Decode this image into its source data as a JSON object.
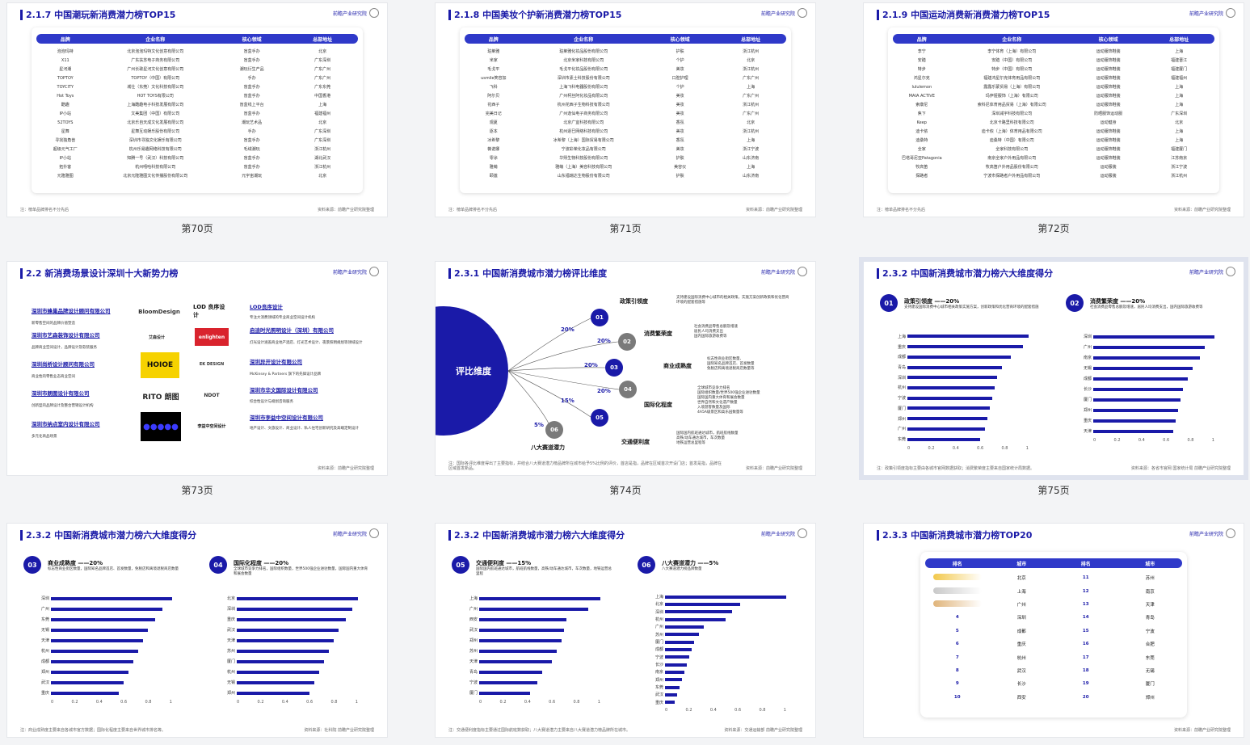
{
  "pages": {
    "p70": {
      "caption": "第70页",
      "title": "2.1.7 中国潮玩新消费潜力榜TOP15",
      "headers": [
        "品牌",
        "企业名称",
        "核心领域",
        "总部地址"
      ],
      "rows": [
        [
          "泡泡玛特",
          "北京泡泡玛特文化创意有限公司",
          "盲盒手办",
          "北京"
        ],
        [
          "X11",
          "广东扶苏电子商务有限公司",
          "盲盒手办",
          "广东深圳"
        ],
        [
          "星河潮",
          "广州长歌星河文化创意有限公司",
          "潮玩衍生产品",
          "广东广州"
        ],
        [
          "TOPTOY",
          "TOPTOY（中国）有限公司",
          "手办",
          "广东广州"
        ],
        [
          "TOYCITY",
          "城仕（东莞）文化科技有限公司",
          "盲盒手办",
          "广东东莞"
        ],
        [
          "Hot Toys",
          "HOT TOYS有限公司",
          "盲盒手办",
          "中国香港"
        ],
        [
          "酷趣",
          "上海酷趣电子科技发展有限公司",
          "盲盒线上平台",
          "上海"
        ],
        [
          "IP小站",
          "文美集团（中国）有限公司",
          "盲盒手办",
          "福建福州"
        ],
        [
          "52TOYS",
          "北京乐自天成文化发展有限公司",
          "潮玩艺术品",
          "北京"
        ],
        [
          "星舞",
          "星舞互动娱乐股份有限公司",
          "手办",
          "广东深圳"
        ],
        [
          "寻找独角兽",
          "深圳市寻独文化娱乐有限公司",
          "盲盒手办",
          "广东深圳"
        ],
        [
          "超级元气工厂",
          "杭州乐易趣网络科技有限公司",
          "毛绒潮玩",
          "浙江杭州"
        ],
        [
          "IP小站",
          "知腾一号（武汉）科技有限公司",
          "盲盒手办",
          "湖北武汉"
        ],
        [
          "拓扑客",
          "杭州嘻哈科技有限公司",
          "盲盒手办",
          "浙江杭州"
        ],
        [
          "元隆雅图",
          "北京元隆雅图文化传播股份有限公司",
          "元宇宙潮玩",
          "北京"
        ]
      ],
      "note": "注：榜单品牌排名不分先后",
      "source": "资料来源：前瞻产业研究院整理"
    },
    "p71": {
      "caption": "第71页",
      "title": "2.1.8 中国美妆个护新消费潜力榜TOP15",
      "headers": [
        "品牌",
        "企业名称",
        "核心领域",
        "总部地址"
      ],
      "rows": [
        [
          "珀莱雅",
          "珀莱雅化妆品股份有限公司",
          "护肤",
          "浙江杭州"
        ],
        [
          "米家",
          "北京米家科技有限公司",
          "个护",
          "北京"
        ],
        [
          "毛戈平",
          "毛戈平化妆品股份有限公司",
          "美妆",
          "浙江杭州"
        ],
        [
          "usmile笑容加",
          "深圳市素士科技股份有限公司",
          "口腔护理",
          "广东广州"
        ],
        [
          "飞科",
          "上海飞科电器股份有限公司",
          "个护",
          "上海"
        ],
        [
          "阿尔贝",
          "广州柯丝阿化妆品有限公司",
          "美妆",
          "广东广州"
        ],
        [
          "花西子",
          "杭州花西子生物科技有限公司",
          "美妆",
          "浙江杭州"
        ],
        [
          "完美日记",
          "广州逸仙电子商务有限公司",
          "美妆",
          "广东广州"
        ],
        [
          "观夏",
          "北京广宜科技有限公司",
          "香氛",
          "北京"
        ],
        [
          "逐本",
          "杭州逐巳网络科技有限公司",
          "美妆",
          "浙江杭州"
        ],
        [
          "冰希黎",
          "冰希黎（上海）国际贸易有限公司",
          "香氛",
          "上海"
        ],
        [
          "薇诺娜",
          "宁波彩荣化妆品有限公司",
          "美妆",
          "浙江宁波"
        ],
        [
          "零涂",
          "华熙生物科技股份有限公司",
          "护肤",
          "山东济南"
        ],
        [
          "雅萌",
          "雅萌（上海）美容科技有限公司",
          "美容仪",
          "上海"
        ],
        [
          "颐莲",
          "山东福瑞达生物股份有限公司",
          "护肤",
          "山东济南"
        ]
      ],
      "note": "注：榜单品牌排名不分先后",
      "source": "资料来源：前瞻产业研究院整理"
    },
    "p72": {
      "caption": "第72页",
      "title": "2.1.9 中国运动消费新消费潜力榜TOP15",
      "headers": [
        "品牌",
        "企业名称",
        "核心领域",
        "总部地址"
      ],
      "rows": [
        [
          "李宁",
          "李宁体育（上海）有限公司",
          "运动服饰鞋装",
          "上海"
        ],
        [
          "安踏",
          "安踏（中国）有限公司",
          "运动服饰鞋装",
          "福建晋江"
        ],
        [
          "特步",
          "特步（中国）有限公司",
          "运动服饰鞋装",
          "福建厦门"
        ],
        [
          "鸿星尔克",
          "福建鸿星尔克体育用品有限公司",
          "运动服饰鞋装",
          "福建福州"
        ],
        [
          "lululemon",
          "露露乐蒙贸易（上海）有限公司",
          "运动服饰鞋装",
          "上海"
        ],
        [
          "MAIA ACTIVE",
          "玛伊娅服饰（上海）有限公司",
          "运动服饰鞋装",
          "上海"
        ],
        [
          "索康尼",
          "索科尼体育用品贸易（上海）有限公司",
          "运动服饰鞋装",
          "上海"
        ],
        [
          "焦下",
          "深圳减宇科技有限公司",
          "防晒服饰运动服",
          "广东深圳"
        ],
        [
          "Keep",
          "北京卡路里科技有限公司",
          "运动健身",
          "北京"
        ],
        [
          "迪卡侬",
          "迪卡侬（上海）体育用品有限公司",
          "运动服饰鞋装",
          "上海"
        ],
        [
          "迪桑特",
          "迪桑特（中国）有限公司",
          "运动服饰鞋装",
          "上海"
        ],
        [
          "全家",
          "全家科技有限公司",
          "运动服饰鞋装",
          "福建厦门"
        ],
        [
          "巴塔哥尼亚Patagonia",
          "南京全家户外用品有限公司",
          "运动服饰鞋装",
          "江苏南京"
        ],
        [
          "牧高笛",
          "牧高笛户外用品股份有限公司",
          "运动服装",
          "浙江宁波"
        ],
        [
          "探路者",
          "宁波市探路者户外用品有限公司",
          "运动服装",
          "浙江杭州"
        ]
      ],
      "note": "注：榜单品牌排名不分先后",
      "source": "资料来源：前瞻产业研究院整理"
    },
    "p73": {
      "caption": "第73页",
      "title": "2.2 新消费场景设计深圳十大新势力榜",
      "companies_left": [
        {
          "name": "深圳市蜂巢品牌设计顾问有限公司",
          "desc": "新零售空间的品牌价值塑造"
        },
        {
          "name": "深圳市艺森装饰设计有限公司",
          "desc": "品牌商业空间设计，品牌设计及软装服务"
        },
        {
          "name": "深圳尚桥设计顾问有限公司",
          "desc": "商业性的零售业态商业空间"
        },
        {
          "name": "深圳市朗图设计有限公司",
          "desc": "创新型的品牌设计及整合营销设计机构"
        },
        {
          "name": "深圳市纳点室内设计有限公司",
          "desc": "多元化商品场景"
        }
      ],
      "companies_right": [
        {
          "name": "LOD良序设计",
          "desc": "专注大消费领域的专业商业空间设计机构"
        },
        {
          "name": "启迪时光照明设计（深圳）有限公司",
          "desc": "灯光设计涵盖商业地产酒店、灯光艺术设计、夜景照明规划等领域设计"
        },
        {
          "name": "深圳异开设计有限公司",
          "desc": "McKinsey & Partners 旗下的先锋设计品牌"
        },
        {
          "name": "深圳市华文国际设计有限公司",
          "desc": "综合性设计与规划咨询服务"
        },
        {
          "name": "深圳市李益中空间设计有限公司",
          "desc": "地产设计、文旅设计、商业设计、私人住宅创新研究及高端定制设计"
        }
      ],
      "logos": [
        "BloomDesign",
        "LOD 良序设计",
        "艾森设计",
        "enlighten",
        "HOIOE",
        "EK DESIGN",
        "RITO 朗图",
        "NDOT",
        "李益中空间设计"
      ],
      "source": "资料来源：前瞻产业研究院整理"
    },
    "p74": {
      "caption": "第74页",
      "title": "2.3.1 中国新消费城市潜力榜评比维度",
      "center": "评比维度",
      "dims": [
        {
          "num": "01",
          "pct": "20%",
          "name": "政策引领度",
          "text": "支持建设国际消费中心城市的相关政策，实施方案创新政策和优化营商环境的配套措施等"
        },
        {
          "num": "02",
          "pct": "20%",
          "name": "消费繁荣度",
          "text": "社会消费品零售总额及增速\n居民人均消费支出\n国内国际旅游收费等"
        },
        {
          "num": "03",
          "pct": "20%",
          "name": "商业成熟度",
          "text": "标志性商业街区数量、\n国际知名品牌首店、首发数量\n免税店和离境退税商店数量等"
        },
        {
          "num": "04",
          "pct": "20%",
          "name": "国际化程度",
          "text": "全球城市竞争力排名\n国际组织数量/世界500强企业进驻数量\n国际国内重大体育和展会数量\n世界自然和文化遗产数量\n入境游客数量及国际\n4A5A级景区和高乐园数量等"
        },
        {
          "num": "05",
          "pct": "15%",
          "name": "交通便利度",
          "text": "国际国内航班通达城市，航班航线数量\n高铁/动车通达城市，车次数量\n地铁运营总里程等"
        },
        {
          "num": "06",
          "pct": "5%",
          "name": "八大赛道潜力",
          "text": ""
        }
      ],
      "note": "注：国际各评比维度得出了主要指标，并结合八大赛道潜力榜品牌所在城市给予5%比例的评价，首店是指，品牌在区域首次开设门店；首发是指，品牌在区域首发新品。",
      "source": "资料来源：前瞻产业研究院整理"
    },
    "p75": {
      "caption": "第75页",
      "title": "2.3.2 中国新消费城市潜力榜六大维度得分",
      "panels": [
        {
          "num": "01",
          "name": "政策引领度 ——20%",
          "desc": "支持建设国际消费中心城市相关政策实施方案，创新政策和优化营商环境的配套措施",
          "cities": [
            "上海",
            "重庆",
            "成都",
            "青岛",
            "深圳",
            "杭州",
            "宁波",
            "厦门",
            "郑州",
            "广州",
            "东莞"
          ],
          "values": [
            1.0,
            0.95,
            0.85,
            0.78,
            0.74,
            0.72,
            0.7,
            0.68,
            0.66,
            0.64,
            0.6
          ]
        },
        {
          "num": "02",
          "name": "消费繁荣度 ——20%",
          "desc": "社会消费品零售总额及增速，居民人均消费支出，国内国际旅游收费等",
          "cities": [
            "深圳",
            "广州",
            "南京",
            "无锡",
            "成都",
            "长沙",
            "厦门",
            "郑州",
            "重庆",
            "天津"
          ],
          "values": [
            1.0,
            0.92,
            0.88,
            0.82,
            0.78,
            0.74,
            0.72,
            0.7,
            0.68,
            0.66
          ]
        }
      ],
      "axis": [
        "0",
        "0.2",
        "0.4",
        "0.6",
        "0.8",
        "1"
      ],
      "note": "注：政策引领度指标主要由各城市官网数据获取；消费繁荣度主要来自国家统计局数据。",
      "source": "资料来源：各省市官网 国家统计局 前瞻产业研究院整理"
    },
    "p76": {
      "title": "2.3.2 中国新消费城市潜力榜六大维度得分",
      "panels": [
        {
          "num": "03",
          "name": "商业成熟度 ——20%",
          "desc": "标志性商业街区数量，国际知名品牌首店、首发数量，免税店和离境退税商店数量",
          "cities": [
            "深圳",
            "广州",
            "东莞",
            "无锡",
            "天津",
            "杭州",
            "成都",
            "郑州",
            "武汉",
            "重庆"
          ],
          "values": [
            1.0,
            0.92,
            0.86,
            0.8,
            0.76,
            0.72,
            0.68,
            0.64,
            0.6,
            0.56
          ]
        },
        {
          "num": "04",
          "name": "国际化程度 ——20%",
          "desc": "全球城市竞争力排名，国际组织数量，世界500强企业进驻数量，国际国内重大体育和展会数量",
          "cities": [
            "北京",
            "深圳",
            "重庆",
            "武汉",
            "天津",
            "苏州",
            "厦门",
            "杭州",
            "无锡",
            "郑州"
          ],
          "values": [
            1.0,
            0.95,
            0.9,
            0.84,
            0.8,
            0.76,
            0.72,
            0.68,
            0.64,
            0.6
          ]
        }
      ],
      "axis": [
        "0",
        "0.2",
        "0.4",
        "0.6",
        "0.8",
        "1"
      ],
      "note": "注：商业成熟度主要来自各城市官方数据；国际化程度主要来自世界城市排名等。",
      "source": "资料来源：社科院 前瞻产业研究院整理"
    },
    "p77": {
      "title": "2.3.2 中国新消费城市潜力榜六大维度得分",
      "panels": [
        {
          "num": "05",
          "name": "交通便利度 ——15%",
          "desc": "国际国内航班通达城市，航班航线数量，高铁/动车通达城市，车次数量，地铁运营总里程",
          "cities": [
            "上海",
            "广州",
            "西安",
            "武汉",
            "郑州",
            "苏州",
            "天津",
            "青岛",
            "宁波",
            "厦门"
          ],
          "values": [
            1.0,
            0.9,
            0.72,
            0.7,
            0.68,
            0.64,
            0.6,
            0.52,
            0.48,
            0.42
          ]
        },
        {
          "num": "06",
          "name": "八大赛道潜力 ——5%",
          "desc": "八大赛道潜力榜品牌数量",
          "cities": [
            "上海",
            "北京",
            "深圳",
            "杭州",
            "广州",
            "苏州",
            "厦门",
            "成都",
            "宁波",
            "长沙",
            "南京",
            "郑州",
            "东莞",
            "武汉",
            "重庆"
          ],
          "values": [
            1.0,
            0.62,
            0.55,
            0.5,
            0.32,
            0.28,
            0.24,
            0.22,
            0.2,
            0.18,
            0.16,
            0.14,
            0.12,
            0.1,
            0.08
          ]
        }
      ],
      "axis": [
        "0",
        "0.2",
        "0.4",
        "0.6",
        "0.8",
        "1"
      ],
      "note": "注：交通便利度指标主要通过国际航班数获取；八大赛道潜力主要来自八大赛道潜力榜品牌所在城市。",
      "source": "资料来源：交通运输部 前瞻产业研究院整理"
    },
    "p78": {
      "title": "2.3.3 中国新消费城市潜力榜TOP20",
      "headers": [
        "排名",
        "城市",
        "排名",
        "城市"
      ],
      "rows": [
        [
          "",
          "北京",
          "11",
          "苏州"
        ],
        [
          "",
          "上海",
          "12",
          "南京"
        ],
        [
          "",
          "广州",
          "13",
          "天津"
        ],
        [
          "4",
          "深圳",
          "14",
          "青岛"
        ],
        [
          "5",
          "成都",
          "15",
          "宁波"
        ],
        [
          "6",
          "重庆",
          "16",
          "合肥"
        ],
        [
          "7",
          "杭州",
          "17",
          "东莞"
        ],
        [
          "8",
          "武汉",
          "18",
          "无锡"
        ],
        [
          "9",
          "长沙",
          "19",
          "厦门"
        ],
        [
          "10",
          "西安",
          "20",
          "郑州"
        ]
      ],
      "source": "资料来源：前瞻产业研究院整理"
    }
  },
  "logo_text": "前瞻产业研究院",
  "colors": {
    "accent": "#1a1aa8",
    "header": "#2f39c9",
    "node_grey": "#7a7a7a"
  }
}
